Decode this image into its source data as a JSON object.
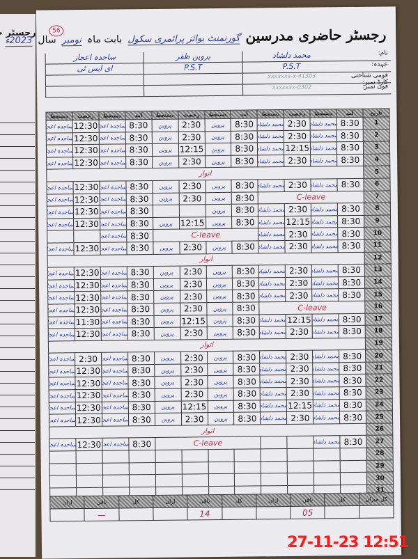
{
  "left_page_title": "رجسٹر حاضری",
  "header": {
    "title": "رجسٹر حاضری مدرسین",
    "school": "گورنمنٹ بوائز پرائمری سکول",
    "month_label": "بابت ماہ",
    "month": "نومبر",
    "year_label": "سال",
    "year": "2023ء",
    "page_number": "56"
  },
  "info_labels": [
    "نام:",
    "عہدہ:",
    "قومی شناختی کارڈ نمبر:",
    "فون نمبر:"
  ],
  "teachers": [
    {
      "name": "محمد دلشاد",
      "designation": "P.S.T",
      "cnic": "41303-xxxxxxx-x",
      "phone": "0302-xxxxxxx"
    },
    {
      "name": "پروین ظفر",
      "designation": "P.S.T",
      "cnic": "",
      "phone": ""
    },
    {
      "name": "ساجدہ اعجاز",
      "designation": "ای ایس ٹی",
      "cnic": "",
      "phone": ""
    }
  ],
  "column_headers": [
    "تاریخ",
    "آمد",
    "دستخط",
    "رخصت",
    "دستخط"
  ],
  "signatures": [
    "محمد دلشاد",
    "پروین",
    "ساجدہ اعجاز"
  ],
  "sunday_label": "اتوار",
  "leave_label": "C-leave",
  "rows": [
    {
      "day": "1",
      "t": [
        [
          "8:30",
          "2:30"
        ],
        [
          "8:30",
          "2:30"
        ],
        [
          "8:30",
          "12:30"
        ]
      ]
    },
    {
      "day": "2",
      "t": [
        [
          "8:30",
          "2:30"
        ],
        [
          "8:30",
          "2:30"
        ],
        [
          "8:30",
          "12:30"
        ]
      ]
    },
    {
      "day": "3",
      "t": [
        [
          "8:30",
          "12:15"
        ],
        [
          "8:30",
          "12:15"
        ],
        [
          "8:30",
          "12:30"
        ]
      ]
    },
    {
      "day": "4",
      "t": [
        [
          "8:30",
          "2:30"
        ],
        [
          "8:30",
          "2:30"
        ],
        [
          "8:30",
          "12:30"
        ]
      ]
    },
    {
      "day": "5",
      "sunday": true
    },
    {
      "day": "6",
      "t": [
        [
          "8:30",
          "2:30"
        ],
        [
          "8:30",
          "2:30"
        ],
        [
          "8:30",
          "12:30"
        ]
      ]
    },
    {
      "day": "7",
      "t": [
        "leave",
        [
          "8:30",
          "2:30"
        ],
        [
          "8:30",
          "12:30"
        ]
      ]
    },
    {
      "day": "8",
      "t": [
        [
          "8:30",
          "2:30"
        ],
        [
          "8:30",
          ""
        ],
        [
          "8:30",
          "12:30"
        ]
      ]
    },
    {
      "day": "9",
      "t": [
        [
          "8:30",
          "12:15"
        ],
        [
          "8:30",
          "12:15"
        ],
        [
          "8:30",
          "12:30"
        ]
      ]
    },
    {
      "day": "10",
      "t": [
        [
          "8:30",
          "2:30"
        ],
        "leave",
        [
          "8:30",
          ""
        ]
      ]
    },
    {
      "day": "11",
      "t": [
        [
          "8:30",
          "2:30"
        ],
        [
          "8:30",
          "2:30"
        ],
        [
          "8:30",
          "12:30"
        ]
      ]
    },
    {
      "day": "12",
      "sunday": true
    },
    {
      "day": "13",
      "t": [
        [
          "8:30",
          "2:30"
        ],
        [
          "8:30",
          "2:30"
        ],
        [
          "8:30",
          "12:30"
        ]
      ]
    },
    {
      "day": "14",
      "t": [
        [
          "8:30",
          "2:30"
        ],
        [
          "8:30",
          "2:30"
        ],
        [
          "8:30",
          "12:30"
        ]
      ]
    },
    {
      "day": "15",
      "t": [
        [
          "8:30",
          "2:30"
        ],
        [
          "8:30",
          "2:30"
        ],
        [
          "8:30",
          "12:30"
        ]
      ]
    },
    {
      "day": "16",
      "t": [
        "leave",
        [
          "8:30",
          "2:30"
        ],
        [
          "8:30",
          "12:30"
        ]
      ]
    },
    {
      "day": "17",
      "t": [
        [
          "8:30",
          "12:15"
        ],
        [
          "8:30",
          "12:15"
        ],
        [
          "8:30",
          "11:30"
        ]
      ]
    },
    {
      "day": "18",
      "t": [
        [
          "8:30",
          "2:30"
        ],
        [
          "8:30",
          "2:30"
        ],
        [
          "8:30",
          "12:30"
        ]
      ]
    },
    {
      "day": "19",
      "sunday": true
    },
    {
      "day": "20",
      "t": [
        [
          "8:30",
          "2:30"
        ],
        [
          "8:30",
          "2:30"
        ],
        [
          "8:30",
          "2:30"
        ]
      ]
    },
    {
      "day": "21",
      "t": [
        [
          "8:30",
          "2:30"
        ],
        [
          "8:30",
          "2:30"
        ],
        [
          "8:30",
          "12:30"
        ]
      ]
    },
    {
      "day": "22",
      "t": [
        [
          "8:30",
          "2:30"
        ],
        [
          "8:30",
          "2:30"
        ],
        [
          "8:30",
          "12:30"
        ]
      ]
    },
    {
      "day": "23",
      "t": [
        [
          "8:30",
          "2:30"
        ],
        [
          "8:30",
          "2:30"
        ],
        [
          "8:30",
          "12:30"
        ]
      ]
    },
    {
      "day": "24",
      "t": [
        [
          "8:30",
          "12:15"
        ],
        [
          "8:30",
          "12:15"
        ],
        [
          "8:30",
          "12:30"
        ]
      ]
    },
    {
      "day": "25",
      "t": [
        [
          "8:30",
          "2:30"
        ],
        [
          "8:30",
          "2:30"
        ],
        [
          "8:30",
          "12:30"
        ]
      ]
    },
    {
      "day": "26",
      "sunday": true
    },
    {
      "day": "27",
      "t": [
        [
          "8:30",
          ""
        ],
        "leave",
        [
          "8:30",
          "12:30"
        ]
      ]
    },
    {
      "day": "28"
    },
    {
      "day": "29"
    },
    {
      "day": "30"
    },
    {
      "day": "31"
    }
  ],
  "summary": {
    "labels": [
      "کل میزان",
      "کل",
      "باقی",
      "ازان",
      "کل",
      "باقی",
      "ازان",
      "کل",
      "باقی",
      "ازان"
    ],
    "values": [
      "",
      "",
      "05",
      "",
      "",
      "14",
      "",
      "",
      "—",
      ""
    ]
  },
  "timestamp": "27-11-23  12:51"
}
